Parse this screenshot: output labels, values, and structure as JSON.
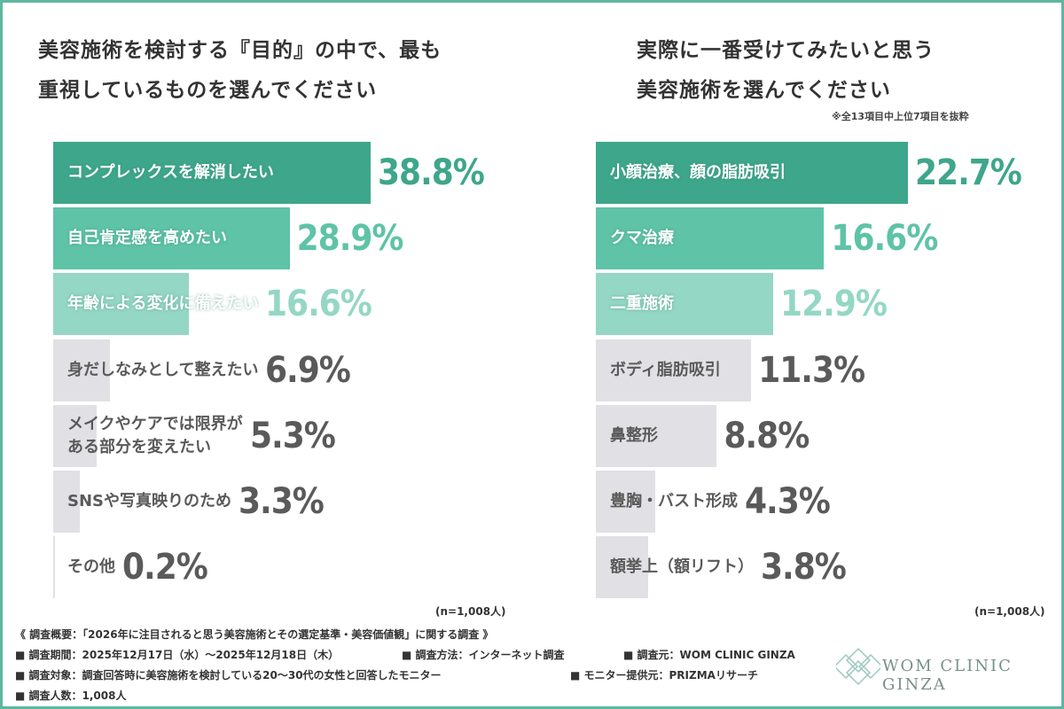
{
  "chart_data": [
    {
      "type": "bar",
      "orientation": "horizontal",
      "title": "美容施術を検討する『目的』の中で、最も\n重視しているものを選んでください",
      "sample": "(n=1,008人)",
      "categories": [
        "コンプレックスを解消したい",
        "自己肯定感を高めたい",
        "年齢による変化に備えたい",
        "身だしなみとして整えたい",
        "メイクやケアでは限界が\nある部分を変えたい",
        "SNSや写真映りのため",
        "その他"
      ],
      "values": [
        38.8,
        28.9,
        16.6,
        6.9,
        5.3,
        3.3,
        0.2
      ],
      "value_labels": [
        "38.8%",
        "28.9%",
        "16.6%",
        "6.9%",
        "5.3%",
        "3.3%",
        "0.2%"
      ],
      "colors": [
        "#3ea68b",
        "#5ec3a7",
        "#94d7c4",
        "#e1e0e4",
        "#e1e0e4",
        "#e1e0e4",
        "#e1e0e4"
      ]
    },
    {
      "type": "bar",
      "orientation": "horizontal",
      "title": "実際に一番受けてみたいと思う\n美容施術を選んでください",
      "note": "※全13項目中上位7項目を抜粋",
      "sample": "(n=1,008人)",
      "categories": [
        "小顔治療、顔の脂肪吸引",
        "クマ治療",
        "二重施術",
        "ボディ脂肪吸引",
        "鼻整形",
        "豊胸・バスト形成",
        "額挙上（額リフト）"
      ],
      "values": [
        22.7,
        16.6,
        12.9,
        11.3,
        8.8,
        4.3,
        3.8
      ],
      "value_labels": [
        "22.7%",
        "16.6%",
        "12.9%",
        "11.3%",
        "8.8%",
        "4.3%",
        "3.8%"
      ],
      "colors": [
        "#3ea68b",
        "#5ec3a7",
        "#94d7c4",
        "#e1e0e4",
        "#e1e0e4",
        "#e1e0e4",
        "#e1e0e4"
      ]
    }
  ],
  "footer": {
    "lines": [
      [
        "《 調査概要：「2026年に注目されると思う美容施術とその選定基準・美容価値観」に関する調査 》"
      ],
      [
        "■ 調査期間：2025年12月17日（水）〜2025年12月18日（木）",
        "■ 調査方法：インターネット調査",
        "■ 調査元：WOM CLINIC GINZA"
      ],
      [
        "■ 調査対象：調査回答時に美容施術を検討している20〜30代の女性と回答したモニター",
        "■ モニター提供元：PRIZMAリサーチ"
      ],
      [
        "■ 調査人数：1,008人"
      ]
    ],
    "logo": "WOM CLINIC GINZA"
  }
}
